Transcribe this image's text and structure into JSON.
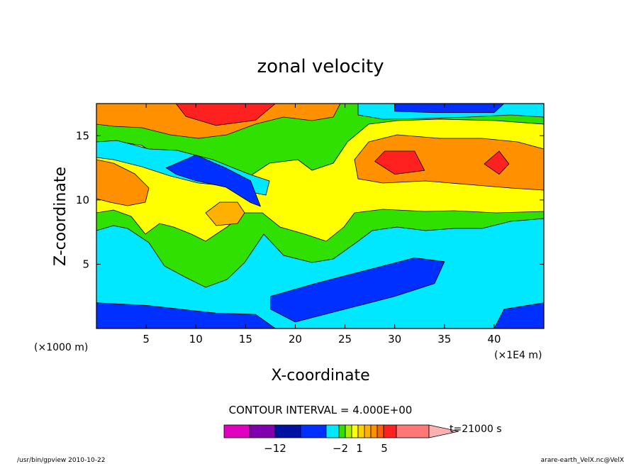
{
  "chart_data": {
    "type": "heatmap",
    "title": "zonal velocity",
    "xlabel": "X-coordinate",
    "ylabel": "Z-coordinate",
    "x_unit_left": "(×1000 m)",
    "x_unit_right": "(×1E4 m)",
    "xlim": [
      0,
      45
    ],
    "ylim": [
      0,
      17.5
    ],
    "x_ticks": [
      5,
      10,
      15,
      20,
      25,
      30,
      35,
      40
    ],
    "y_ticks": [
      5,
      10,
      15
    ],
    "contour_interval": "CONTOUR INTERVAL = 4.000E+00",
    "time_label": "t=21000 s",
    "colorbar": {
      "colors": [
        "#e000c0",
        "#8000b0",
        "#0010a0",
        "#0030ff",
        "#00e8ff",
        "#30e000",
        "#a8f000",
        "#ffff00",
        "#ffd000",
        "#ffb000",
        "#ff9000",
        "#ff6000",
        "#ff2020",
        "#ff7878",
        "#ffb0b0"
      ],
      "tick_labels": [
        "−12",
        "−2",
        "1",
        "5"
      ]
    },
    "regions": [
      {
        "value": "positive-max",
        "color": "#ff2020",
        "shape": [
          [
            8,
            17.5
          ],
          [
            18,
            17.5
          ],
          [
            16,
            16.2
          ],
          [
            12,
            15.8
          ],
          [
            9,
            16.5
          ]
        ]
      },
      {
        "value": "positive-max",
        "color": "#ff2020",
        "shape": [
          [
            28,
            13
          ],
          [
            30,
            12
          ],
          [
            33,
            12.3
          ],
          [
            32,
            13.8
          ],
          [
            29,
            13.8
          ]
        ]
      },
      {
        "value": "positive-max",
        "color": "#ff2020",
        "shape": [
          [
            39,
            12.8
          ],
          [
            40.5,
            12
          ],
          [
            41.5,
            12.8
          ],
          [
            40.5,
            13.8
          ]
        ]
      },
      {
        "value": "negative-max",
        "color": "#0030ff",
        "shape": [
          [
            7,
            12.5
          ],
          [
            10,
            13.5
          ],
          [
            13,
            12.5
          ],
          [
            15.5,
            11.5
          ],
          [
            16.5,
            9.5
          ],
          [
            15.5,
            9.8
          ],
          [
            13,
            11
          ],
          [
            10,
            11.5
          ],
          [
            8,
            12
          ]
        ]
      },
      {
        "value": "negative-max",
        "color": "#0030ff",
        "shape": [
          [
            17.5,
            1.5
          ],
          [
            17.5,
            2.5
          ],
          [
            22,
            3.5
          ],
          [
            27,
            4.5
          ],
          [
            32,
            5.5
          ],
          [
            35,
            5.2
          ],
          [
            34,
            3.5
          ],
          [
            30,
            2.5
          ],
          [
            25,
            1.5
          ],
          [
            20,
            0.5
          ]
        ]
      },
      {
        "value": "negative-max",
        "color": "#0030ff",
        "shape": [
          [
            0,
            0
          ],
          [
            0,
            2
          ],
          [
            5,
            1.8
          ],
          [
            12,
            1.2
          ],
          [
            16,
            1.1
          ],
          [
            18,
            0
          ]
        ]
      },
      {
        "value": "negative-max",
        "color": "#0030ff",
        "shape": [
          [
            40,
            0
          ],
          [
            41,
            1.5
          ],
          [
            45,
            2
          ],
          [
            45,
            0
          ]
        ]
      },
      {
        "value": "negative-max",
        "color": "#0030ff",
        "shape": [
          [
            30,
            17.5
          ],
          [
            41,
            17.5
          ],
          [
            40,
            16.8
          ],
          [
            34,
            16.8
          ],
          [
            30,
            16.9
          ]
        ]
      }
    ]
  },
  "footer": {
    "left": "/usr/bin/gpview   2010-10-22",
    "right": "arare-earth_VelX.nc@VelX"
  }
}
